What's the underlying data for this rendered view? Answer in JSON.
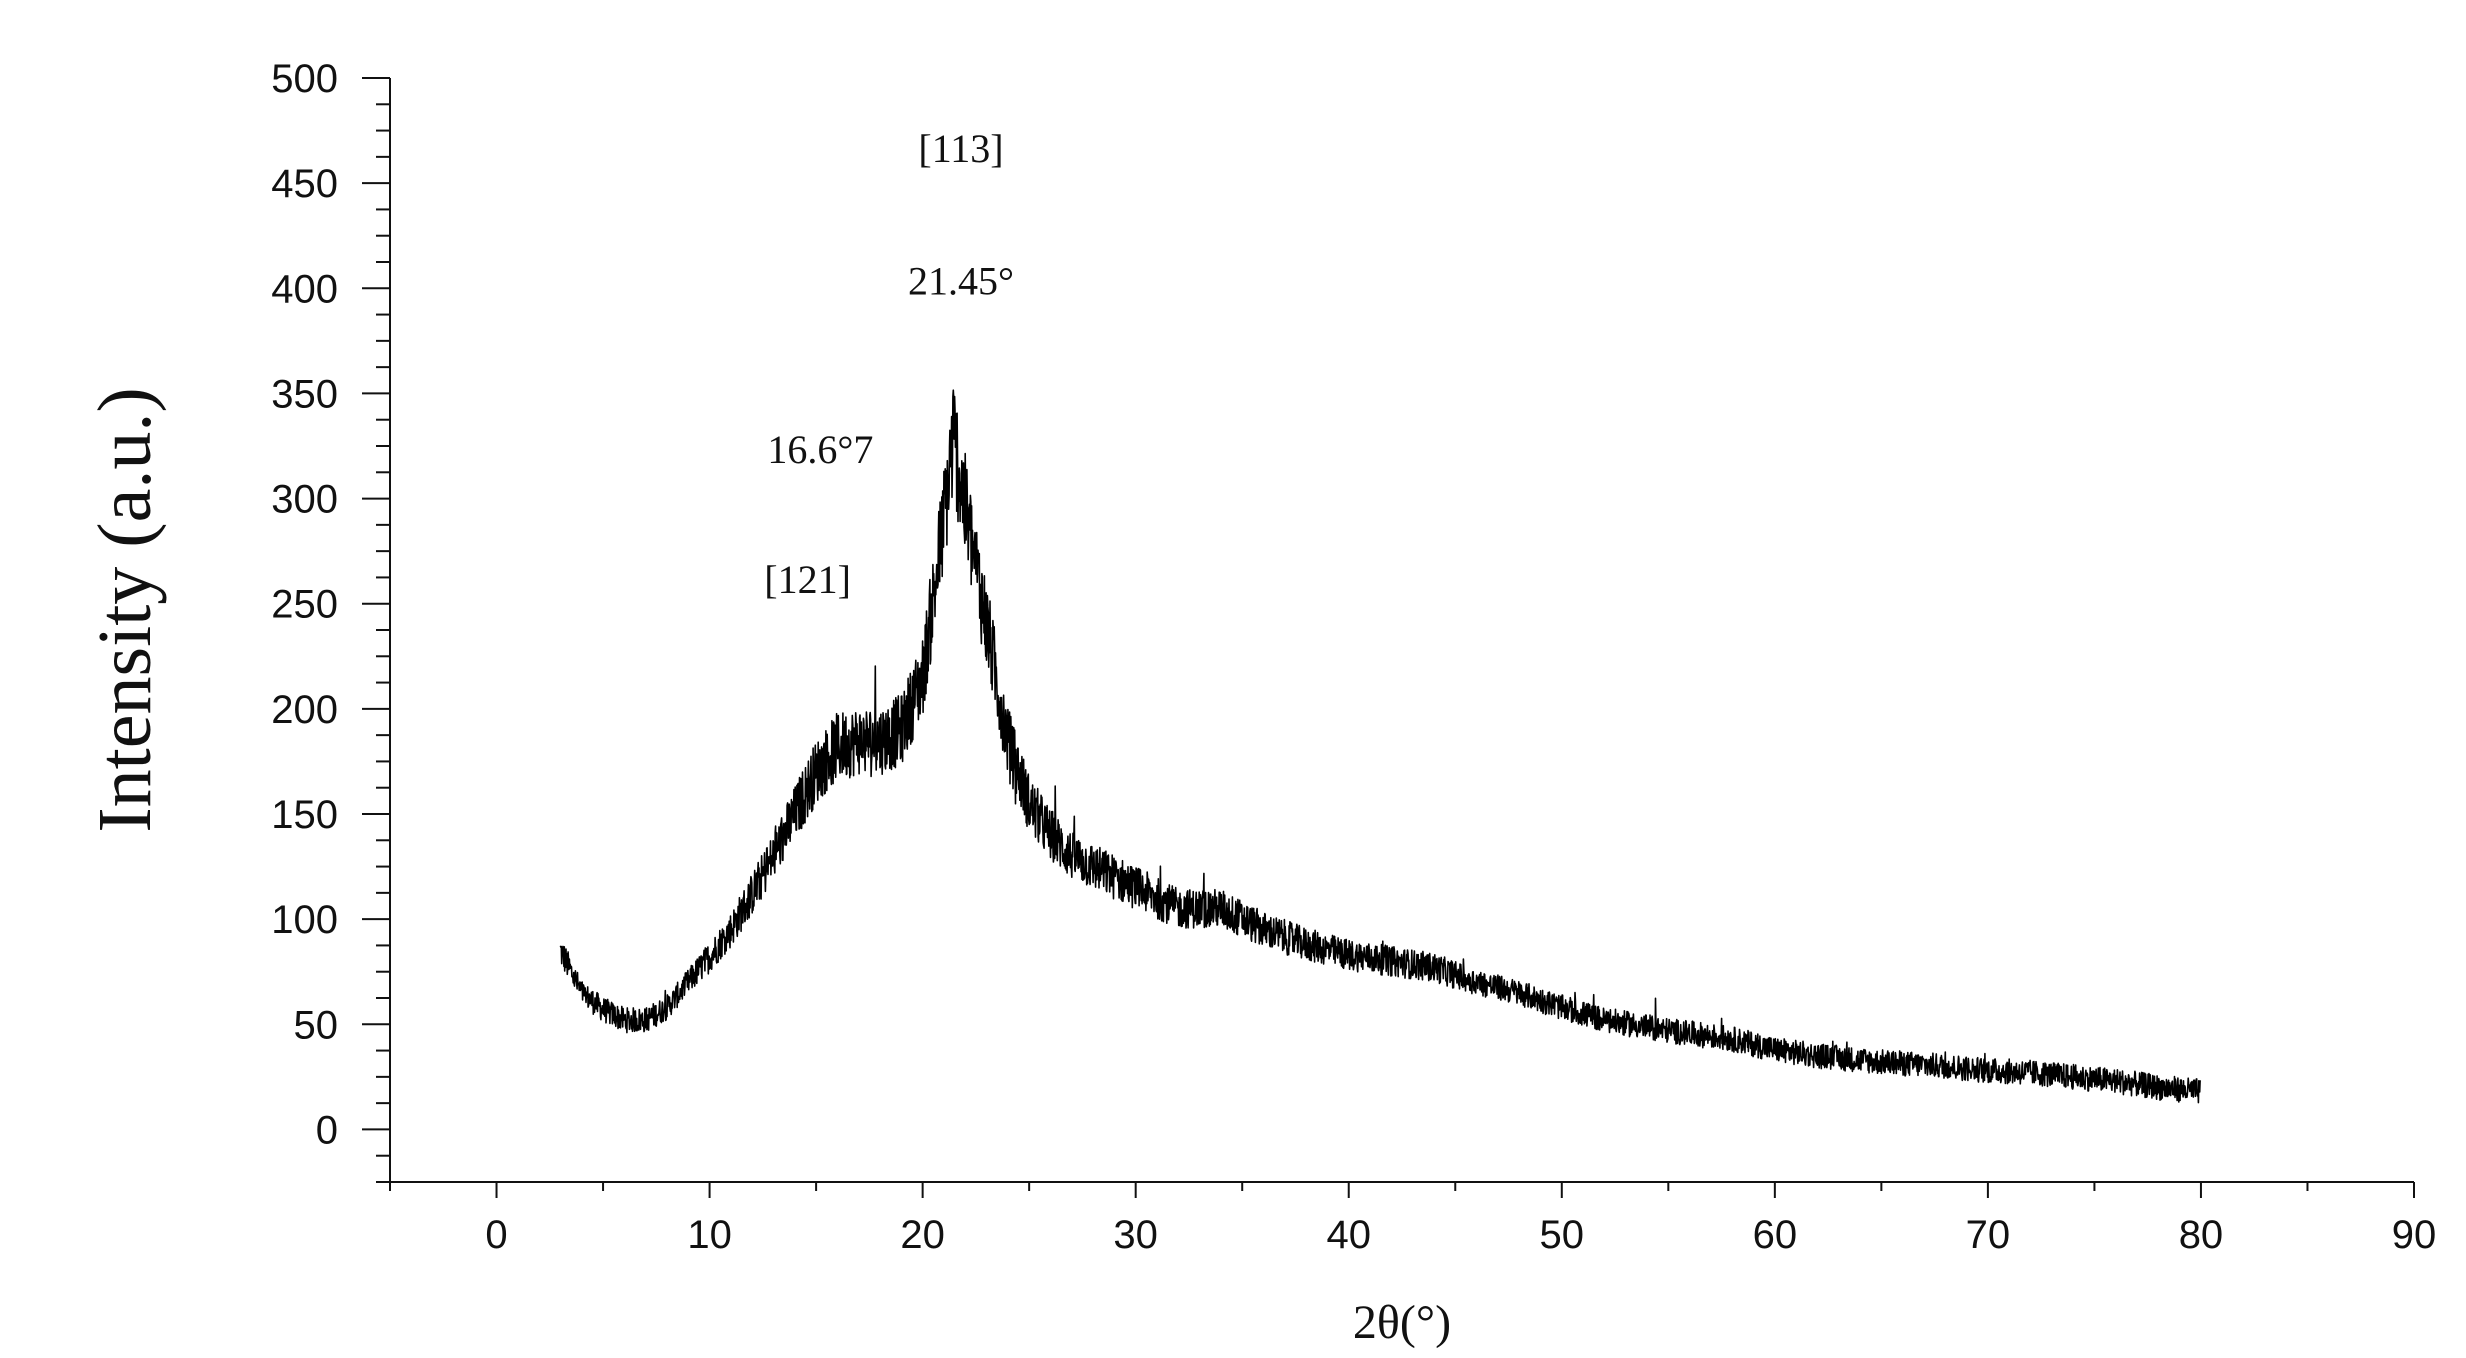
{
  "chart_data": {
    "type": "line",
    "title": "",
    "xlabel": "2θ(°)",
    "ylabel": "Intensity (a.u.)",
    "xlim": [
      -5,
      90
    ],
    "ylim": [
      -25,
      500
    ],
    "x_ticks": [
      0,
      10,
      20,
      30,
      40,
      50,
      60,
      70,
      80,
      90
    ],
    "y_ticks": [
      0,
      50,
      100,
      150,
      200,
      250,
      300,
      350,
      400,
      450,
      500
    ],
    "x_minor_step": 5,
    "y_minor_step": 12.5,
    "grid": false,
    "legend": "none",
    "series": [
      {
        "x": [
          3,
          4,
          5,
          6,
          7,
          8,
          9,
          10,
          11,
          12,
          13,
          14,
          15,
          16,
          17,
          18,
          19,
          20,
          21,
          21.45,
          22,
          23,
          24,
          25,
          26,
          27,
          28,
          30,
          32,
          34,
          35,
          36,
          38,
          40,
          42,
          44,
          46,
          48,
          50,
          52,
          55,
          58,
          60,
          62,
          65,
          68,
          70,
          72,
          74,
          76,
          78,
          80
        ],
        "y": [
          85,
          65,
          57,
          52,
          52,
          58,
          70,
          82,
          95,
          112,
          130,
          150,
          170,
          182,
          185,
          185,
          190,
          215,
          290,
          330,
          295,
          240,
          185,
          155,
          140,
          130,
          125,
          115,
          105,
          105,
          100,
          95,
          88,
          83,
          80,
          77,
          70,
          65,
          58,
          52,
          47,
          43,
          38,
          35,
          32,
          30,
          28,
          27,
          25,
          23,
          20,
          18
        ]
      }
    ],
    "annotations": [
      {
        "text": "[113]",
        "x": 21.8,
        "y": 460
      },
      {
        "text": "21.45°",
        "x": 21.8,
        "y": 397
      },
      {
        "text": "16.6°7",
        "x": 15.2,
        "y": 317
      },
      {
        "text": "[121]",
        "x": 14.6,
        "y": 255
      }
    ]
  }
}
